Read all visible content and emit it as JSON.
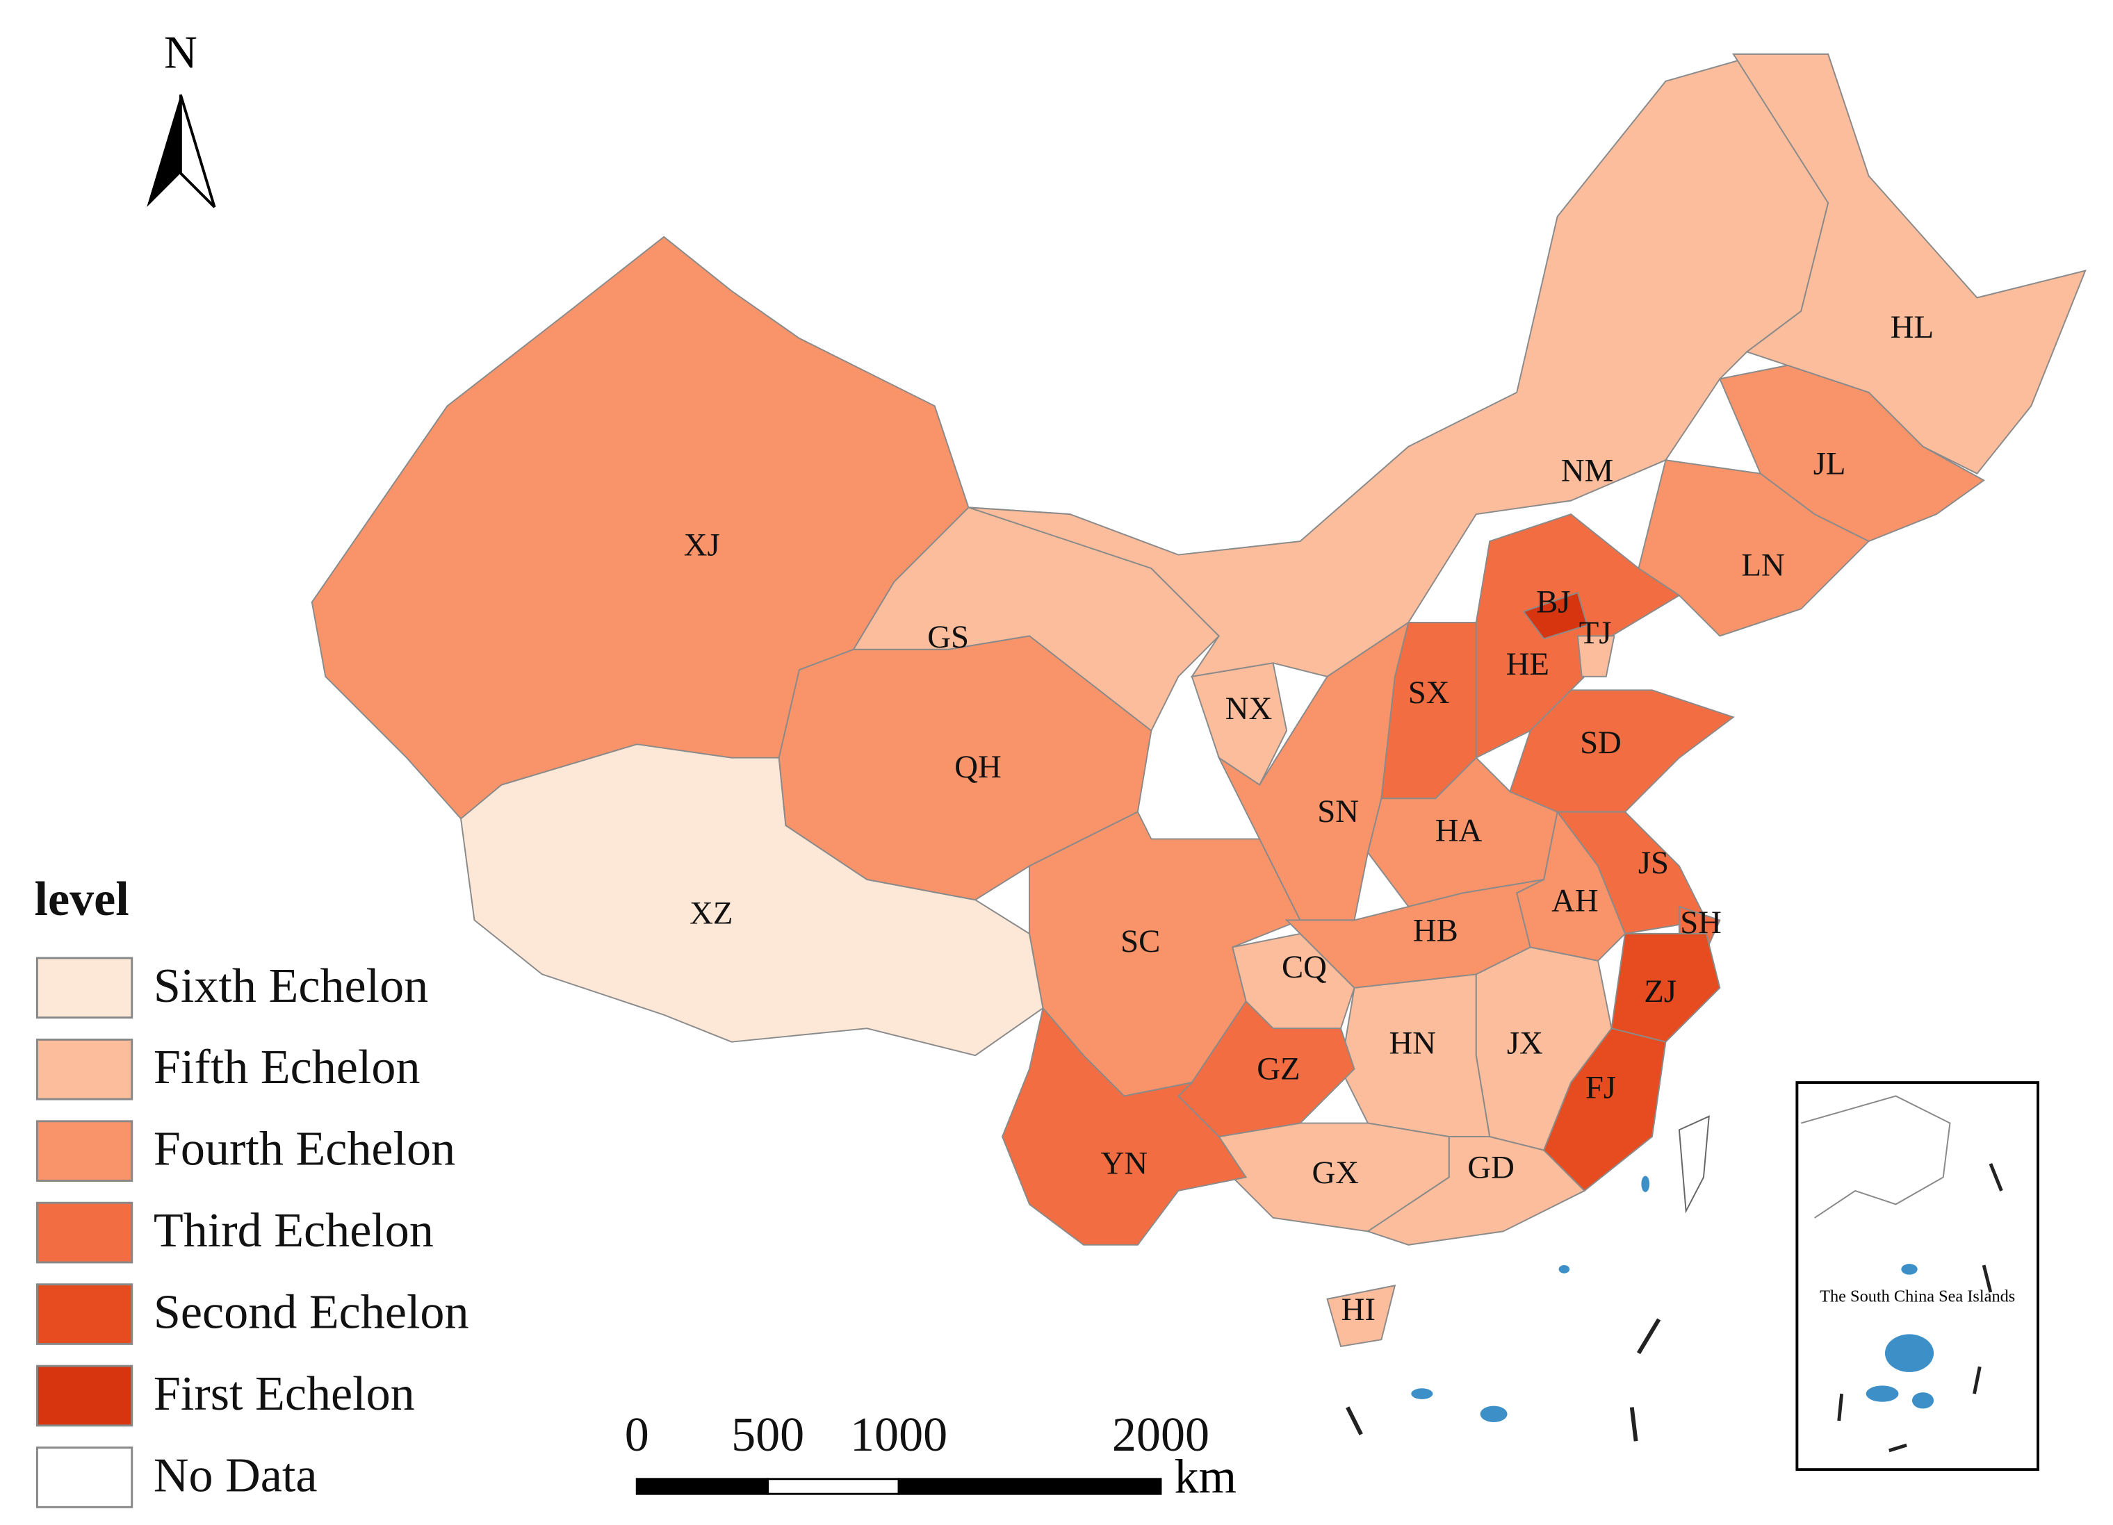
{
  "map": {
    "north_label": "N",
    "legend": {
      "title": "level",
      "items": [
        {
          "label": "Sixth Echelon",
          "color": "#fde8d8",
          "regions": [
            "XZ"
          ]
        },
        {
          "label": "Fifth Echelon",
          "color": "#fbbd9c",
          "regions": [
            "GS",
            "NM",
            "HL",
            "NX",
            "CQ",
            "HN",
            "JX",
            "GX",
            "GD",
            "HI",
            "TJ"
          ]
        },
        {
          "label": "Fourth Echelon",
          "color": "#f9946a",
          "regions": [
            "XJ",
            "QH",
            "SC",
            "SN",
            "HA",
            "HB",
            "AH",
            "JL",
            "LN"
          ]
        },
        {
          "label": "Third Echelon",
          "color": "#f26e42",
          "regions": [
            "SX",
            "HE",
            "SD",
            "JS",
            "SH",
            "GZ",
            "YN"
          ]
        },
        {
          "label": "Second Echelon",
          "color": "#e64c1f",
          "regions": [
            "ZJ",
            "FJ"
          ]
        },
        {
          "label": "First Echelon",
          "color": "#d63510",
          "regions": [
            "BJ"
          ]
        },
        {
          "label": "No Data",
          "color": "#ffffff",
          "regions": []
        }
      ]
    },
    "scale_bar": {
      "ticks": [
        0,
        500,
        1000,
        2000
      ],
      "unit": "km"
    },
    "inset": {
      "label": "The South China Sea Islands"
    }
  }
}
